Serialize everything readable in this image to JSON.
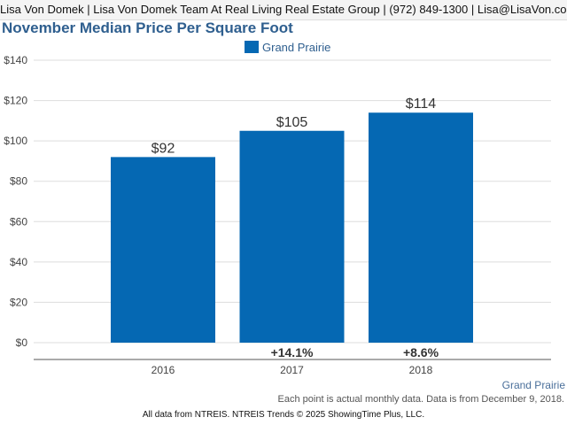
{
  "header": {
    "contact": "Lisa Von Domek | Lisa Von Domek Team At Real Living Real Estate Group | (972) 849-1300 | Lisa@LisaVon.com"
  },
  "chart_data": {
    "type": "bar",
    "title": "November Median Price Per Square Foot",
    "categories": [
      "2016",
      "2017",
      "2018"
    ],
    "series": [
      {
        "name": "Grand Prairie",
        "values": [
          92,
          105,
          114
        ],
        "color": "#0568b3"
      }
    ],
    "value_labels": [
      "$92",
      "$105",
      "$114"
    ],
    "change_labels": [
      "",
      "+14.1%",
      "+8.6%"
    ],
    "yticks": [
      0,
      20,
      40,
      60,
      80,
      100,
      120,
      140
    ],
    "ytick_labels": [
      "$0",
      "$20",
      "$40",
      "$60",
      "$80",
      "$100",
      "$120",
      "$140"
    ],
    "ylim": [
      0,
      140
    ],
    "grid": true,
    "legend_position": "top-center"
  },
  "bottom_series_label": "Grand Prairie",
  "note": "Each point is actual monthly data. Data is from December 9, 2018.",
  "footer": "All data from NTREIS. NTREIS Trends © 2025 ShowingTime Plus, LLC.",
  "colors": {
    "bar": "#0568b3",
    "title": "#2f5f8f",
    "grid": "#dddddd"
  }
}
